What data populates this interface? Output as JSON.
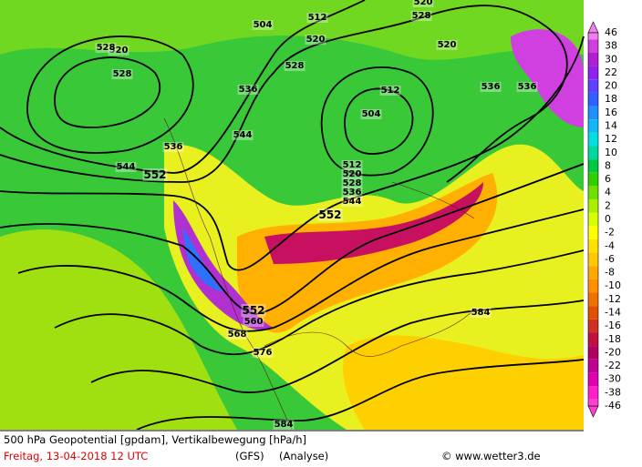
{
  "map": {
    "contour_labels": [
      "504",
      "512",
      "520",
      "528",
      "536",
      "544",
      "552",
      "520",
      "528",
      "536",
      "512",
      "504",
      "512",
      "520",
      "528",
      "536",
      "544",
      "552",
      "544",
      "536",
      "528",
      "520",
      "528",
      "520",
      "536",
      "552",
      "560",
      "568",
      "576",
      "584",
      "584"
    ],
    "legend": {
      "labels": [
        46,
        38,
        30,
        22,
        20,
        18,
        16,
        14,
        12,
        10,
        8,
        6,
        4,
        2,
        0,
        -2,
        -4,
        -6,
        -8,
        -10,
        -12,
        -14,
        -16,
        -18,
        -20,
        -22,
        -30,
        -38,
        -46
      ],
      "colors": [
        "#f080f0",
        "#d040e0",
        "#b020d0",
        "#9020f0",
        "#6040ff",
        "#3060ff",
        "#2090ff",
        "#10b8f8",
        "#00e0e0",
        "#00d8a0",
        "#00c840",
        "#30d000",
        "#70e000",
        "#a8f000",
        "#d8ff00",
        "#ffff00",
        "#ffe000",
        "#ffc800",
        "#ffa800",
        "#ff9000",
        "#f07000",
        "#e05000",
        "#d03020",
        "#c01040",
        "#b00060",
        "#c00090",
        "#e000b0",
        "#ff20c8",
        "#ff40d0"
      ]
    },
    "caption": {
      "line1": "500 hPa Geopotential [gpdam], Vertikalbewegung [hPa/h]",
      "date": "Freitag, 13-04-2018  12 UTC",
      "model": "(GFS)",
      "analysis": "(Analyse)",
      "source": "© www.wetter3.de"
    }
  }
}
